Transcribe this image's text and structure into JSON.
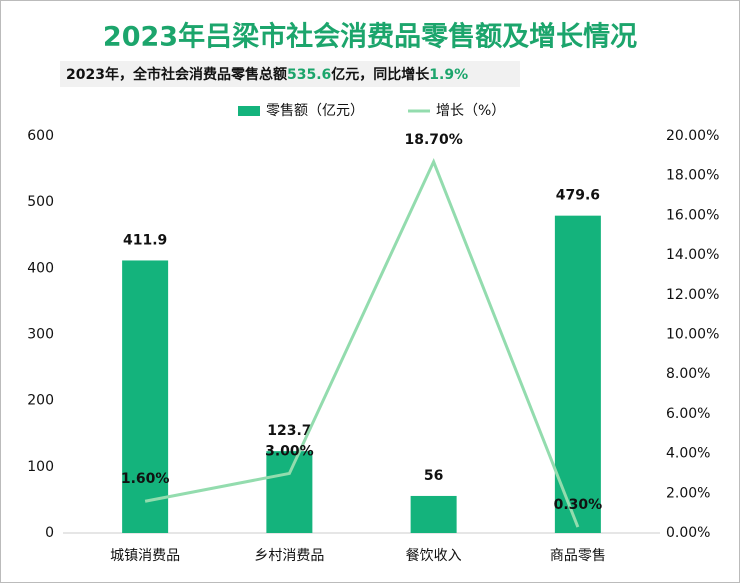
{
  "chart_data": {
    "type": "bar",
    "title": "2023年吕梁市社会消费品零售额及增长情况",
    "subtitle": [
      "2023年，全市社会消费品零售总额",
      "535.6",
      "亿元，同比增长",
      "1.9%"
    ],
    "categories": [
      "城镇消费品",
      "乡村消费品",
      "餐饮收入",
      "商品零售"
    ],
    "series": [
      {
        "name": "零售额（亿元）",
        "type": "bar",
        "color": "#14b37c",
        "values": [
          411.9,
          123.7,
          56,
          479.6
        ]
      },
      {
        "name": "增长（%）",
        "type": "line",
        "axis": "y2",
        "color": "#93dcae",
        "values": [
          1.6,
          3.0,
          18.7,
          0.3
        ],
        "value_labels": [
          "1.60%",
          "3.00%",
          "18.70%",
          "0.30%"
        ]
      }
    ],
    "ylim": [
      0,
      600
    ],
    "yticks": [
      0,
      100,
      200,
      300,
      400,
      500,
      600
    ],
    "y2lim": [
      0,
      20
    ],
    "y2ticks": [
      {
        "value": 0,
        "label": "0.00%"
      },
      {
        "value": 2,
        "label": "2.00%"
      },
      {
        "value": 4,
        "label": "4.00%"
      },
      {
        "value": 6,
        "label": "6.00%"
      },
      {
        "value": 8,
        "label": "8.00%"
      },
      {
        "value": 10,
        "label": "10.00%"
      },
      {
        "value": 12,
        "label": "12.00%"
      },
      {
        "value": 14,
        "label": "14.00%"
      },
      {
        "value": 16,
        "label": "16.00%"
      },
      {
        "value": 18,
        "label": "18.00%"
      },
      {
        "value": 20,
        "label": "20.00%"
      }
    ],
    "grid": false
  }
}
